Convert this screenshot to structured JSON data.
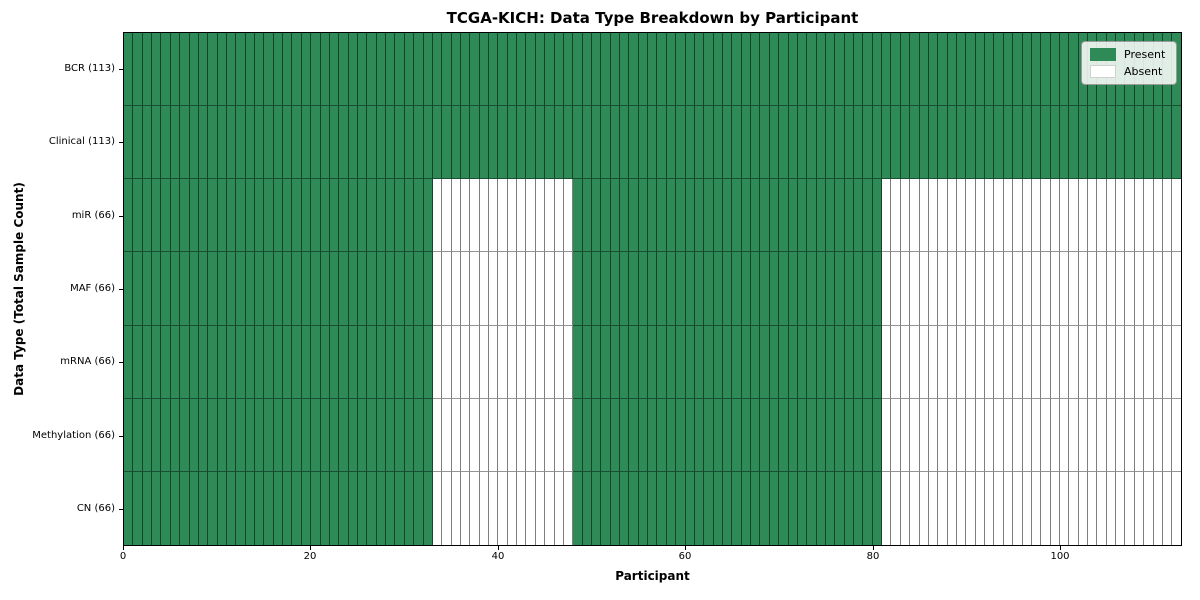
{
  "chart": {
    "title": "TCGA-KICH: Data Type Breakdown by Participant",
    "xlabel": "Participant",
    "ylabel": "Data Type (Total Sample Count)"
  },
  "legend": {
    "items": [
      {
        "label": "Present",
        "color": "#2e8b57"
      },
      {
        "label": "Absent",
        "color": "#ffffff"
      }
    ],
    "position": "upper-right"
  },
  "chart_data": {
    "type": "heatmap",
    "title": "TCGA-KICH: Data Type Breakdown by Participant",
    "xlabel": "Participant",
    "ylabel": "Data Type (Total Sample Count)",
    "xlim": [
      0,
      113
    ],
    "x_ticks": [
      0,
      20,
      40,
      60,
      80,
      100
    ],
    "n_participants": 113,
    "grid": false,
    "colors": {
      "present": "#2e8b57",
      "absent": "#ffffff"
    },
    "rows": [
      {
        "label": "BCR (113)",
        "data_type": "BCR",
        "total_samples": 113,
        "present_ranges": [
          [
            0,
            113
          ]
        ]
      },
      {
        "label": "Clinical (113)",
        "data_type": "Clinical",
        "total_samples": 113,
        "present_ranges": [
          [
            0,
            113
          ]
        ]
      },
      {
        "label": "miR (66)",
        "data_type": "miR",
        "total_samples": 66,
        "present_ranges": [
          [
            0,
            33
          ],
          [
            48,
            81
          ]
        ]
      },
      {
        "label": "MAF (66)",
        "data_type": "MAF",
        "total_samples": 66,
        "present_ranges": [
          [
            0,
            33
          ],
          [
            48,
            81
          ]
        ]
      },
      {
        "label": "mRNA (66)",
        "data_type": "mRNA",
        "total_samples": 66,
        "present_ranges": [
          [
            0,
            33
          ],
          [
            48,
            81
          ]
        ]
      },
      {
        "label": "Methylation (66)",
        "data_type": "Methylation",
        "total_samples": 66,
        "present_ranges": [
          [
            0,
            33
          ],
          [
            48,
            81
          ]
        ]
      },
      {
        "label": "CN (66)",
        "data_type": "CN",
        "total_samples": 66,
        "present_ranges": [
          [
            0,
            33
          ],
          [
            48,
            81
          ]
        ]
      }
    ]
  }
}
